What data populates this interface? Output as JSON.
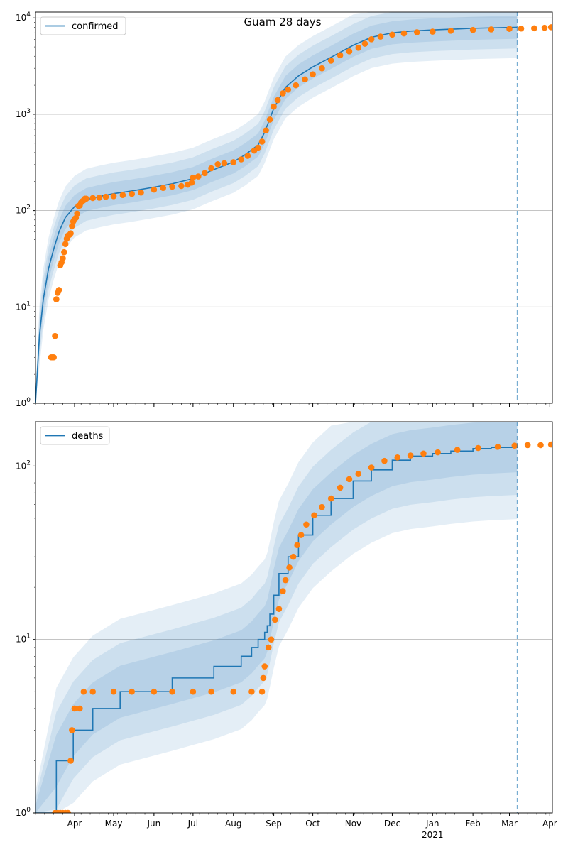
{
  "figure": {
    "title": "Guam 28 days"
  },
  "colors": {
    "model_line": "#1f77b4",
    "band": "#1f77b4",
    "observed": "#ff7f0e",
    "forecast_line": "#1f77b4",
    "grid": "#b0b0b0"
  },
  "chart_data": [
    {
      "type": "line",
      "panel": "top",
      "yscale": "log",
      "ylim": [
        1,
        11500
      ],
      "xlim": [
        "2020-03-02",
        "2021-04-03"
      ],
      "x_ticks_major": [
        "Apr",
        "May",
        "Jun",
        "Jul",
        "Aug",
        "Sep",
        "Oct",
        "Nov",
        "Dec",
        "Jan",
        "Feb",
        "Mar",
        "Apr"
      ],
      "x_tick_year": "2021",
      "y_ticks": [
        "10^0",
        "10^1",
        "10^2",
        "10^3",
        "10^4"
      ],
      "grid": "horizontal",
      "legend": {
        "position": "top-left",
        "entries": [
          "confirmed"
        ]
      },
      "forecast_start": "2021-03-07",
      "model_series": {
        "name": "confirmed",
        "points": [
          [
            "2020-03-02",
            1
          ],
          [
            "2020-03-05",
            5
          ],
          [
            "2020-03-08",
            12
          ],
          [
            "2020-03-12",
            25
          ],
          [
            "2020-03-16",
            40
          ],
          [
            "2020-03-20",
            60
          ],
          [
            "2020-03-25",
            85
          ],
          [
            "2020-04-01",
            110
          ],
          [
            "2020-04-10",
            130
          ],
          [
            "2020-04-20",
            140
          ],
          [
            "2020-05-01",
            150
          ],
          [
            "2020-05-15",
            160
          ],
          [
            "2020-06-01",
            175
          ],
          [
            "2020-06-15",
            190
          ],
          [
            "2020-07-01",
            215
          ],
          [
            "2020-07-15",
            260
          ],
          [
            "2020-08-01",
            320
          ],
          [
            "2020-08-10",
            380
          ],
          [
            "2020-08-20",
            480
          ],
          [
            "2020-08-25",
            650
          ],
          [
            "2020-09-01",
            1150
          ],
          [
            "2020-09-10",
            1900
          ],
          [
            "2020-09-20",
            2500
          ],
          [
            "2020-10-01",
            3100
          ],
          [
            "2020-10-15",
            3900
          ],
          [
            "2020-11-01",
            5200
          ],
          [
            "2020-11-15",
            6300
          ],
          [
            "2020-12-01",
            7000
          ],
          [
            "2020-12-15",
            7300
          ],
          [
            "2021-01-01",
            7500
          ],
          [
            "2021-02-01",
            7800
          ],
          [
            "2021-03-07",
            8000
          ]
        ]
      },
      "bands_log10_halfwidth": [
        0.12,
        0.22,
        0.32
      ],
      "observed": {
        "points": [
          [
            "2020-03-14",
            3
          ],
          [
            "2020-03-15",
            3
          ],
          [
            "2020-03-16",
            3
          ],
          [
            "2020-03-17",
            5
          ],
          [
            "2020-03-18",
            12
          ],
          [
            "2020-03-19",
            14
          ],
          [
            "2020-03-20",
            15
          ],
          [
            "2020-03-21",
            27
          ],
          [
            "2020-03-22",
            29
          ],
          [
            "2020-03-23",
            32
          ],
          [
            "2020-03-24",
            37
          ],
          [
            "2020-03-25",
            45
          ],
          [
            "2020-03-26",
            51
          ],
          [
            "2020-03-27",
            55
          ],
          [
            "2020-03-28",
            56
          ],
          [
            "2020-03-29",
            58
          ],
          [
            "2020-03-30",
            69
          ],
          [
            "2020-03-31",
            77
          ],
          [
            "2020-04-01",
            82
          ],
          [
            "2020-04-02",
            84
          ],
          [
            "2020-04-03",
            93
          ],
          [
            "2020-04-04",
            112
          ],
          [
            "2020-04-05",
            113
          ],
          [
            "2020-04-06",
            121
          ],
          [
            "2020-04-07",
            125
          ],
          [
            "2020-04-08",
            128
          ],
          [
            "2020-04-09",
            133
          ],
          [
            "2020-04-10",
            133
          ],
          [
            "2020-04-15",
            135
          ],
          [
            "2020-04-20",
            136
          ],
          [
            "2020-04-25",
            139
          ],
          [
            "2020-05-01",
            141
          ],
          [
            "2020-05-08",
            145
          ],
          [
            "2020-05-15",
            149
          ],
          [
            "2020-05-22",
            154
          ],
          [
            "2020-06-01",
            165
          ],
          [
            "2020-06-08",
            172
          ],
          [
            "2020-06-15",
            177
          ],
          [
            "2020-06-22",
            180
          ],
          [
            "2020-06-27",
            186
          ],
          [
            "2020-06-30",
            195
          ],
          [
            "2020-07-01",
            220
          ],
          [
            "2020-07-05",
            226
          ],
          [
            "2020-07-10",
            245
          ],
          [
            "2020-07-15",
            275
          ],
          [
            "2020-07-20",
            303
          ],
          [
            "2020-07-25",
            310
          ],
          [
            "2020-08-01",
            318
          ],
          [
            "2020-08-07",
            340
          ],
          [
            "2020-08-12",
            370
          ],
          [
            "2020-08-17",
            420
          ],
          [
            "2020-08-20",
            450
          ],
          [
            "2020-08-23",
            520
          ],
          [
            "2020-08-26",
            680
          ],
          [
            "2020-08-29",
            880
          ],
          [
            "2020-09-01",
            1200
          ],
          [
            "2020-09-04",
            1400
          ],
          [
            "2020-09-08",
            1650
          ],
          [
            "2020-09-12",
            1800
          ],
          [
            "2020-09-18",
            2000
          ],
          [
            "2020-09-25",
            2300
          ],
          [
            "2020-10-01",
            2600
          ],
          [
            "2020-10-08",
            3000
          ],
          [
            "2020-10-15",
            3600
          ],
          [
            "2020-10-22",
            4100
          ],
          [
            "2020-10-29",
            4500
          ],
          [
            "2020-11-05",
            4900
          ],
          [
            "2020-11-10",
            5400
          ],
          [
            "2020-11-15",
            6000
          ],
          [
            "2020-11-22",
            6400
          ],
          [
            "2020-12-01",
            6700
          ],
          [
            "2020-12-10",
            6900
          ],
          [
            "2020-12-20",
            7100
          ],
          [
            "2021-01-01",
            7200
          ],
          [
            "2021-01-15",
            7350
          ],
          [
            "2021-02-01",
            7500
          ],
          [
            "2021-02-15",
            7600
          ],
          [
            "2021-03-01",
            7700
          ],
          [
            "2021-03-10",
            7750
          ],
          [
            "2021-03-20",
            7800
          ],
          [
            "2021-03-28",
            7900
          ],
          [
            "2021-04-02",
            8000
          ]
        ]
      }
    },
    {
      "type": "line",
      "panel": "bottom",
      "yscale": "log",
      "ylim": [
        1,
        180
      ],
      "xlim": [
        "2020-03-02",
        "2021-04-03"
      ],
      "x_ticks_major": [
        "Apr",
        "May",
        "Jun",
        "Jul",
        "Aug",
        "Sep",
        "Oct",
        "Nov",
        "Dec",
        "Jan",
        "Feb",
        "Mar",
        "Apr"
      ],
      "x_tick_year": "2021",
      "y_ticks": [
        "10^0",
        "10^1",
        "10^2"
      ],
      "grid": "horizontal",
      "legend": {
        "position": "top-left",
        "entries": [
          "deaths"
        ]
      },
      "forecast_start": "2021-03-07",
      "model_series": {
        "name": "deaths",
        "step": true,
        "points": [
          [
            "2020-03-02",
            1
          ],
          [
            "2020-03-18",
            2
          ],
          [
            "2020-03-31",
            3
          ],
          [
            "2020-04-15",
            4
          ],
          [
            "2020-05-06",
            5
          ],
          [
            "2020-06-15",
            6
          ],
          [
            "2020-07-17",
            7
          ],
          [
            "2020-08-07",
            8
          ],
          [
            "2020-08-15",
            9
          ],
          [
            "2020-08-20",
            10
          ],
          [
            "2020-08-25",
            11
          ],
          [
            "2020-08-27",
            12
          ],
          [
            "2020-08-29",
            14
          ],
          [
            "2020-09-01",
            18
          ],
          [
            "2020-09-05",
            24
          ],
          [
            "2020-09-12",
            30
          ],
          [
            "2020-09-20",
            40
          ],
          [
            "2020-10-01",
            52
          ],
          [
            "2020-10-15",
            65
          ],
          [
            "2020-11-01",
            82
          ],
          [
            "2020-11-15",
            95
          ],
          [
            "2020-12-01",
            108
          ],
          [
            "2020-12-15",
            114
          ],
          [
            "2021-01-01",
            118
          ],
          [
            "2021-01-15",
            122
          ],
          [
            "2021-02-01",
            126
          ],
          [
            "2021-02-15",
            128
          ],
          [
            "2021-03-07",
            130
          ]
        ]
      },
      "bands_log10_halfwidth": [
        0.15,
        0.28,
        0.42
      ],
      "observed": {
        "points": [
          [
            "2020-03-17",
            1
          ],
          [
            "2020-03-19",
            1
          ],
          [
            "2020-03-21",
            1
          ],
          [
            "2020-03-23",
            1
          ],
          [
            "2020-03-25",
            1
          ],
          [
            "2020-03-27",
            1
          ],
          [
            "2020-03-29",
            2
          ],
          [
            "2020-03-30",
            3
          ],
          [
            "2020-04-01",
            4
          ],
          [
            "2020-04-05",
            4
          ],
          [
            "2020-04-08",
            5
          ],
          [
            "2020-04-15",
            5
          ],
          [
            "2020-05-01",
            5
          ],
          [
            "2020-05-15",
            5
          ],
          [
            "2020-06-01",
            5
          ],
          [
            "2020-06-15",
            5
          ],
          [
            "2020-07-01",
            5
          ],
          [
            "2020-07-15",
            5
          ],
          [
            "2020-08-01",
            5
          ],
          [
            "2020-08-15",
            5
          ],
          [
            "2020-08-23",
            5
          ],
          [
            "2020-08-24",
            6
          ],
          [
            "2020-08-25",
            7
          ],
          [
            "2020-08-28",
            9
          ],
          [
            "2020-08-30",
            10
          ],
          [
            "2020-09-02",
            13
          ],
          [
            "2020-09-05",
            15
          ],
          [
            "2020-09-08",
            19
          ],
          [
            "2020-09-10",
            22
          ],
          [
            "2020-09-13",
            26
          ],
          [
            "2020-09-16",
            30
          ],
          [
            "2020-09-19",
            35
          ],
          [
            "2020-09-22",
            40
          ],
          [
            "2020-09-26",
            46
          ],
          [
            "2020-10-02",
            52
          ],
          [
            "2020-10-08",
            58
          ],
          [
            "2020-10-15",
            65
          ],
          [
            "2020-10-22",
            75
          ],
          [
            "2020-10-29",
            84
          ],
          [
            "2020-11-05",
            90
          ],
          [
            "2020-11-15",
            98
          ],
          [
            "2020-11-25",
            107
          ],
          [
            "2020-12-05",
            112
          ],
          [
            "2020-12-15",
            115
          ],
          [
            "2020-12-25",
            118
          ],
          [
            "2021-01-05",
            120
          ],
          [
            "2021-01-20",
            124
          ],
          [
            "2021-02-05",
            127
          ],
          [
            "2021-02-20",
            129
          ],
          [
            "2021-03-05",
            131
          ],
          [
            "2021-03-15",
            132
          ],
          [
            "2021-03-25",
            132
          ],
          [
            "2021-04-02",
            133
          ]
        ]
      }
    }
  ]
}
